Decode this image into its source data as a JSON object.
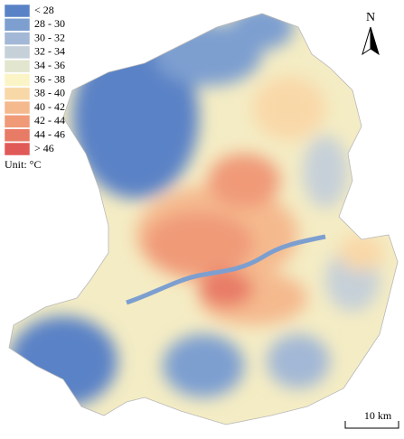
{
  "legend": {
    "items": [
      {
        "label": "< 28",
        "color": "#5a82c6"
      },
      {
        "label": "28 - 30",
        "color": "#7d9fd0"
      },
      {
        "label": "30 - 32",
        "color": "#a3b8d6"
      },
      {
        "label": "32 - 34",
        "color": "#c6d0d8"
      },
      {
        "label": "34 - 36",
        "color": "#e3e6cf"
      },
      {
        "label": "36 - 38",
        "color": "#fbf4c6"
      },
      {
        "label": "38 - 40",
        "color": "#f9d8a8"
      },
      {
        "label": "40 - 42",
        "color": "#f5b98e"
      },
      {
        "label": "42 - 44",
        "color": "#f09a78"
      },
      {
        "label": "44 - 46",
        "color": "#e87b66"
      },
      {
        "label": "> 46",
        "color": "#e05a57"
      }
    ],
    "unit": "Unit: °C"
  },
  "north_arrow": "N",
  "scale_bar": "10 km"
}
